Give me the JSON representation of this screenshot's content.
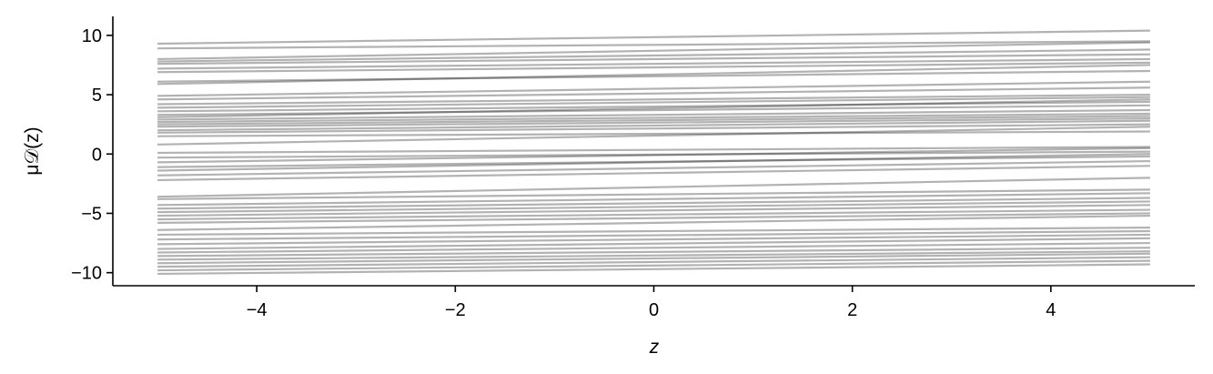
{
  "chart_data": {
    "type": "line",
    "title": "",
    "xlabel": "z",
    "ylabel": "μ𝒟(z)",
    "xlim": [
      -5.45,
      5.45
    ],
    "ylim": [
      -11.1,
      11.6
    ],
    "x_range": [
      -5,
      5
    ],
    "xticks": [
      -4,
      -2,
      0,
      2,
      4
    ],
    "xtick_labels": [
      "−4",
      "−2",
      "0",
      "2",
      "4"
    ],
    "yticks": [
      10,
      5,
      0,
      -5,
      -10
    ],
    "ytick_labels": [
      "10",
      "5",
      "0",
      "−5",
      "−10"
    ],
    "grid": false,
    "legend": "none",
    "line_color": "#000000",
    "line_alpha": 0.3,
    "series": [
      {
        "values": [
          9.3,
          10.4
        ]
      },
      {
        "values": [
          8.9,
          9.5
        ]
      },
      {
        "values": [
          8.0,
          9.4
        ]
      },
      {
        "values": [
          7.8,
          8.8
        ]
      },
      {
        "values": [
          7.6,
          8.4
        ]
      },
      {
        "values": [
          7.2,
          8.0
        ]
      },
      {
        "values": [
          6.9,
          7.7
        ]
      },
      {
        "values": [
          6.1,
          7.0
        ]
      },
      {
        "values": [
          5.9,
          7.5
        ]
      },
      {
        "values": [
          4.9,
          6.1
        ]
      },
      {
        "values": [
          4.6,
          5.6
        ]
      },
      {
        "values": [
          4.2,
          5.0
        ]
      },
      {
        "values": [
          3.9,
          4.8
        ]
      },
      {
        "values": [
          3.6,
          4.4
        ]
      },
      {
        "values": [
          3.3,
          4.1
        ]
      },
      {
        "values": [
          3.1,
          4.6
        ]
      },
      {
        "values": [
          2.9,
          3.7
        ]
      },
      {
        "values": [
          2.7,
          3.4
        ]
      },
      {
        "values": [
          2.5,
          3.2
        ]
      },
      {
        "values": [
          2.3,
          3.0
        ]
      },
      {
        "values": [
          2.0,
          2.8
        ]
      },
      {
        "values": [
          1.8,
          2.5
        ]
      },
      {
        "values": [
          1.5,
          1.9
        ]
      },
      {
        "values": [
          0.8,
          2.3
        ]
      },
      {
        "values": [
          0.1,
          0.6
        ]
      },
      {
        "values": [
          -0.3,
          0.2
        ]
      },
      {
        "values": [
          -0.7,
          0.5
        ]
      },
      {
        "values": [
          -1.1,
          -0.2
        ]
      },
      {
        "values": [
          -1.4,
          0.0
        ]
      },
      {
        "values": [
          -1.8,
          -0.6
        ]
      },
      {
        "values": [
          -2.2,
          -1.0
        ]
      },
      {
        "values": [
          -3.6,
          -2.0
        ]
      },
      {
        "values": [
          -3.8,
          -3.0
        ]
      },
      {
        "values": [
          -4.3,
          -3.3
        ]
      },
      {
        "values": [
          -4.6,
          -3.7
        ]
      },
      {
        "values": [
          -4.9,
          -4.0
        ]
      },
      {
        "values": [
          -5.2,
          -4.3
        ]
      },
      {
        "values": [
          -5.5,
          -4.7
        ]
      },
      {
        "values": [
          -5.8,
          -5.0
        ]
      },
      {
        "values": [
          -6.4,
          -5.2
        ]
      },
      {
        "values": [
          -6.8,
          -6.2
        ]
      },
      {
        "values": [
          -7.2,
          -6.5
        ]
      },
      {
        "values": [
          -7.6,
          -6.8
        ]
      },
      {
        "values": [
          -8.0,
          -7.1
        ]
      },
      {
        "values": [
          -8.3,
          -7.5
        ]
      },
      {
        "values": [
          -8.6,
          -7.9
        ]
      },
      {
        "values": [
          -8.9,
          -8.2
        ]
      },
      {
        "values": [
          -9.2,
          -8.4
        ]
      },
      {
        "values": [
          -9.5,
          -8.7
        ]
      },
      {
        "values": [
          -9.8,
          -9.0
        ]
      },
      {
        "values": [
          -10.1,
          -9.3
        ]
      }
    ]
  }
}
